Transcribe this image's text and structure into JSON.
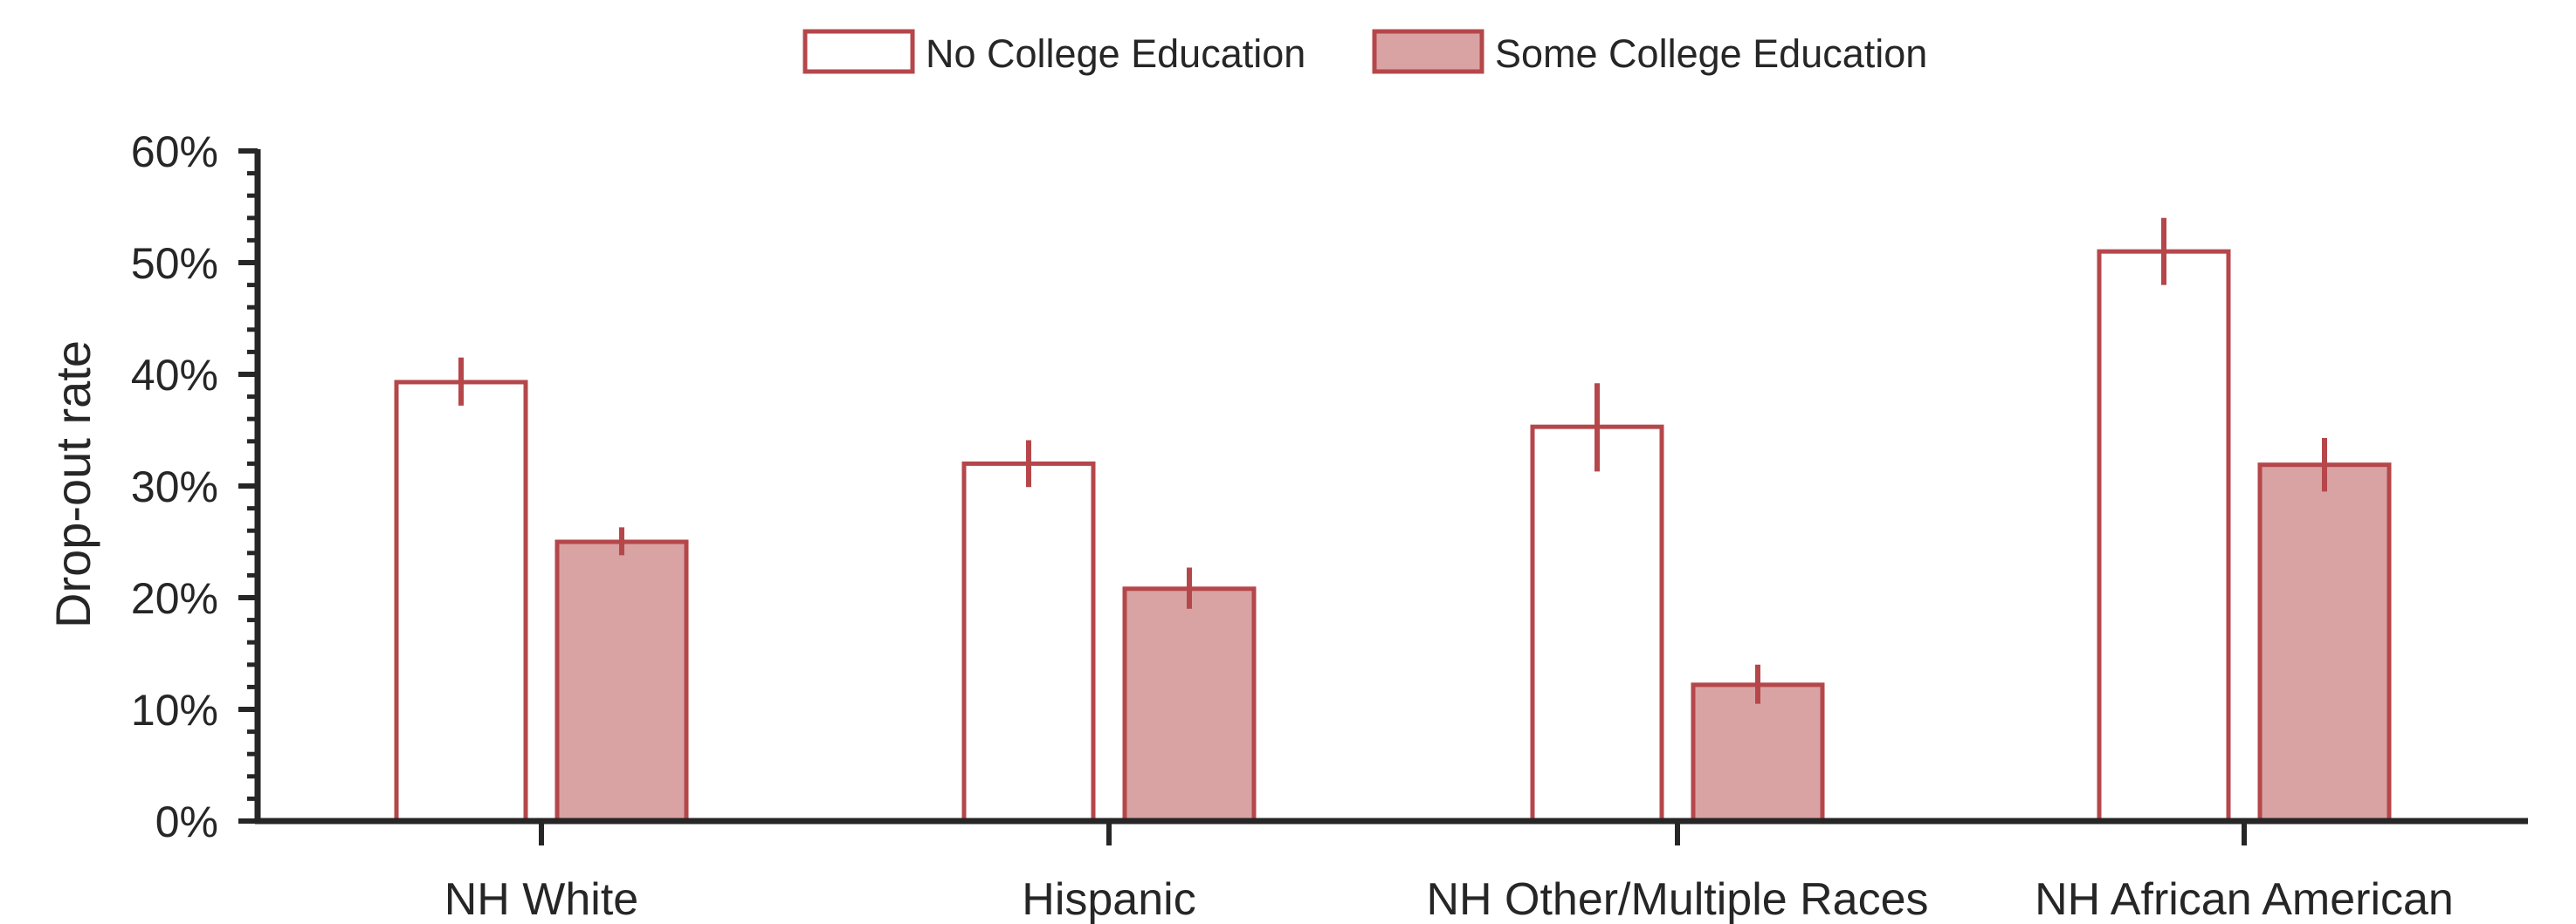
{
  "chart_data": {
    "type": "bar",
    "ylabel": "Drop-out rate",
    "ylim": [
      0,
      60
    ],
    "yticks": [
      0,
      10,
      20,
      30,
      40,
      50,
      60
    ],
    "ytick_labels": [
      "0%",
      "10%",
      "20%",
      "30%",
      "40%",
      "50%",
      "60%"
    ],
    "categories": [
      "NH White",
      "Hispanic",
      "NH Other/Multiple Races",
      "NH African American"
    ],
    "series": [
      {
        "name": "No College Education",
        "values": [
          39.3,
          32.0,
          35.3,
          51.0
        ],
        "err_low": [
          37.2,
          29.9,
          31.3,
          48.0
        ],
        "err_high": [
          41.5,
          34.1,
          39.2,
          54.0
        ]
      },
      {
        "name": "Some College Education",
        "values": [
          25.0,
          20.8,
          12.2,
          31.9
        ],
        "err_low": [
          23.8,
          19.0,
          10.5,
          29.5
        ],
        "err_high": [
          26.3,
          22.7,
          14.0,
          34.3
        ]
      }
    ],
    "legend_position": "top-center",
    "grid": false
  },
  "colors": {
    "edge": "#b5474b",
    "fill_some_college": "#d9a3a3",
    "fill_no_college": "#ffffff",
    "axis": "#262626"
  }
}
